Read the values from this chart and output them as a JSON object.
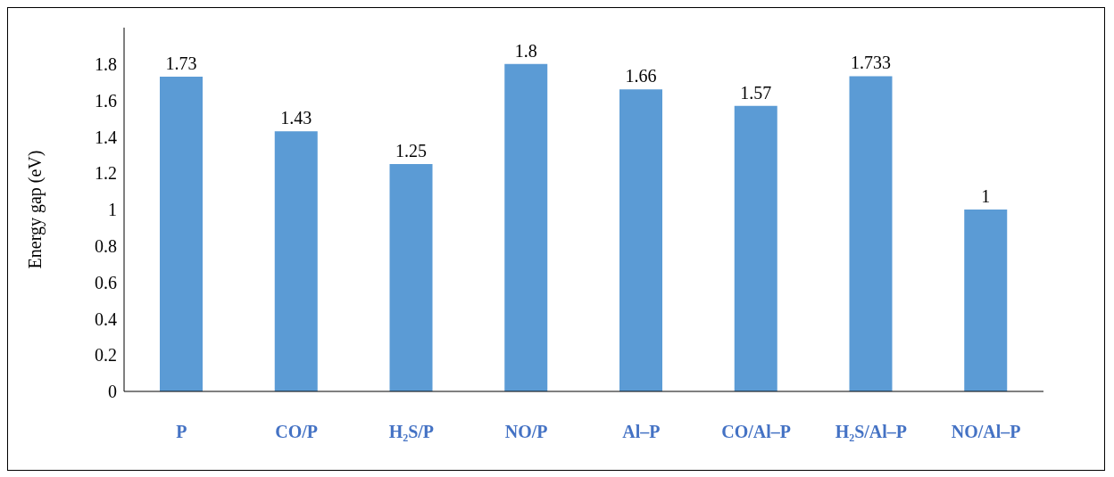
{
  "chart_data": {
    "type": "bar",
    "ylabel": "Energy gap (eV)",
    "categories": [
      "P",
      "CO/P",
      "H₂S/P",
      "NO/P",
      "Al–P",
      "CO/Al–P",
      "H₂S/Al–P",
      "NO/Al–P"
    ],
    "values": [
      1.73,
      1.43,
      1.25,
      1.8,
      1.66,
      1.57,
      1.733,
      1
    ],
    "color": "#5b9bd5",
    "ylim": [
      0,
      2
    ],
    "yticks": [
      0,
      0.2,
      0.4,
      0.6,
      0.8,
      1,
      1.2,
      1.4,
      1.6,
      1.8
    ],
    "data_labels": true
  }
}
